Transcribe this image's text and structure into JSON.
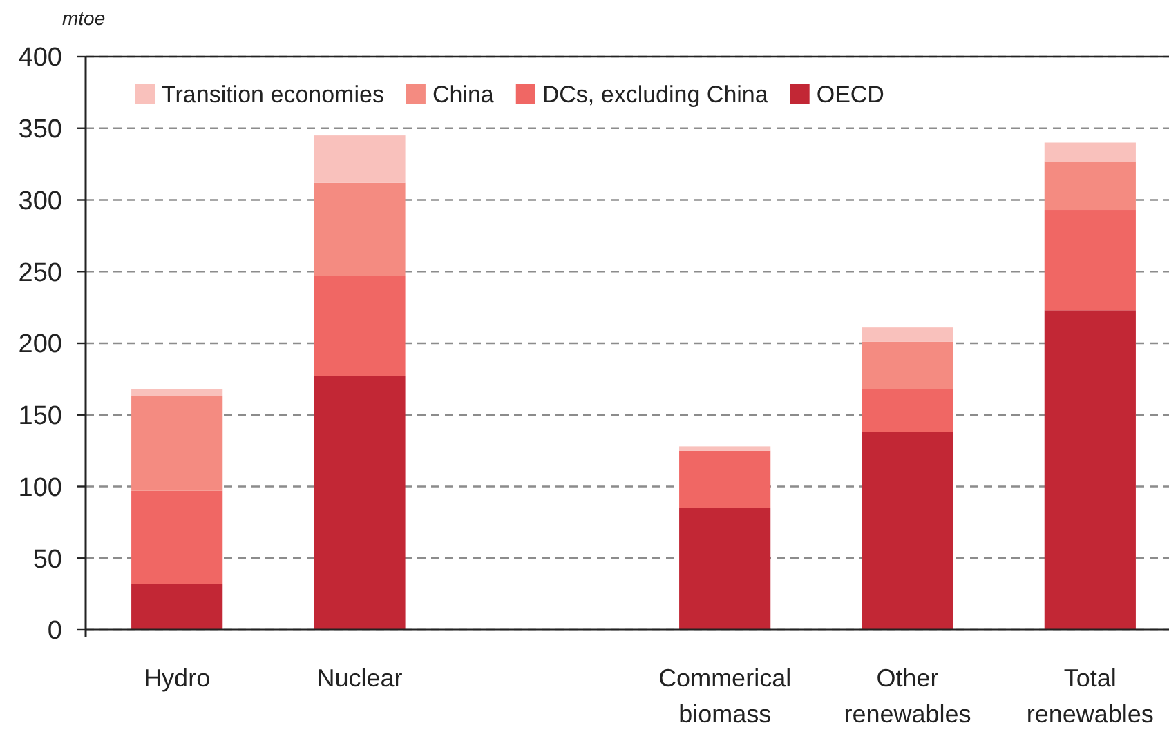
{
  "chart_data": {
    "type": "bar",
    "ylabel": "mtoe",
    "categories": [
      "Hydro",
      "Nuclear",
      null,
      "Commerical biomass",
      "Other renewables",
      "Total renewables"
    ],
    "series": [
      {
        "name": "OECD",
        "color": "#c22735",
        "values": [
          32,
          177,
          null,
          85,
          138,
          223
        ]
      },
      {
        "name": "DCs, excluding China",
        "color": "#f06764",
        "values": [
          65,
          70,
          null,
          40,
          30,
          70
        ]
      },
      {
        "name": "China",
        "color": "#f48b81",
        "values": [
          66,
          65,
          null,
          null,
          33,
          34
        ]
      },
      {
        "name": "Transition economies",
        "color": "#f9c1bc",
        "values": [
          5,
          33,
          null,
          3,
          10,
          13
        ]
      }
    ],
    "stacked": true,
    "ylim": [
      0,
      400
    ],
    "yticks": [
      0,
      50,
      100,
      150,
      200,
      250,
      300,
      350,
      400
    ],
    "grid": "y",
    "legend": "top left"
  }
}
